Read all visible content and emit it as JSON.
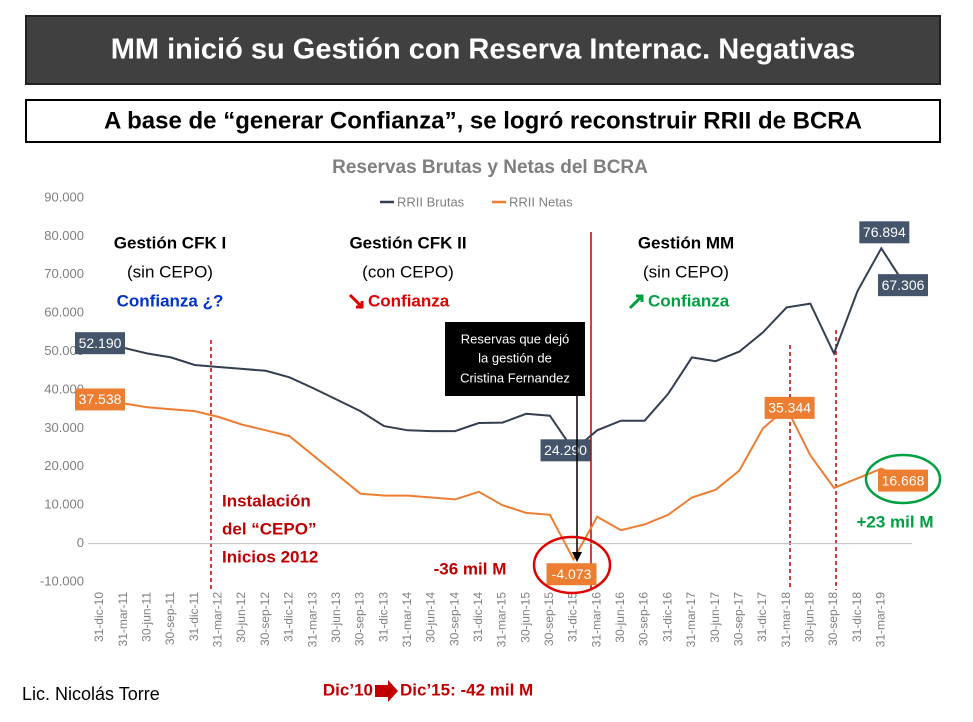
{
  "header": {
    "title": "MM inició su Gestión con Reserva Internac. Negativas",
    "subtitle": "A base de “generar Confianza”, se logró reconstruir RRII de BCRA"
  },
  "chart_data": {
    "type": "line",
    "title": "Reservas Brutas y Netas del BCRA",
    "categories": [
      "31-dic-10",
      "31-mar-11",
      "30-jun-11",
      "30-sep-11",
      "31-dic-11",
      "31-mar-12",
      "30-jun-12",
      "30-sep-12",
      "31-dic-12",
      "31-mar-13",
      "30-jun-13",
      "30-sep-13",
      "31-dic-13",
      "31-mar-14",
      "30-jun-14",
      "30-sep-14",
      "31-dic-14",
      "31-mar-15",
      "30-jun-15",
      "30-sep-15",
      "31-dic-15",
      "31-mar-16",
      "30-jun-16",
      "30-sep-16",
      "31-dic-16",
      "31-mar-17",
      "30-jun-17",
      "30-sep-17",
      "31-dic-17",
      "31-mar-18",
      "30-jun-18",
      "30-sep-18",
      "31-dic-18",
      "31-mar-19",
      null
    ],
    "series": [
      {
        "name": "RRII Brutas",
        "color": "#333f50",
        "values": [
          52190,
          51000,
          49500,
          48500,
          46500,
          46000,
          45500,
          45000,
          43300,
          40500,
          37500,
          34500,
          30600,
          29500,
          29300,
          29300,
          31400,
          31500,
          33800,
          33300,
          24290,
          29500,
          32000,
          32000,
          39000,
          48500,
          47500,
          50000,
          55000,
          61500,
          62500,
          49500,
          65800,
          76894,
          67306
        ],
        "value_labels": [
          "52.190",
          null,
          null,
          null,
          null,
          null,
          null,
          null,
          null,
          null,
          null,
          null,
          null,
          null,
          null,
          null,
          null,
          null,
          null,
          null,
          "24.290",
          null,
          null,
          null,
          null,
          null,
          null,
          null,
          null,
          null,
          null,
          null,
          null,
          "76.894",
          "67.306"
        ]
      },
      {
        "name": "RRII Netas",
        "color": "#ed7d31",
        "values": [
          37538,
          36500,
          35500,
          35000,
          34500,
          33000,
          31000,
          29500,
          28000,
          23000,
          18000,
          13000,
          12500,
          12500,
          12000,
          11500,
          13500,
          10000,
          8000,
          7500,
          -4073,
          7000,
          3500,
          5000,
          7500,
          12000,
          14000,
          19000,
          30000,
          35344,
          23000,
          14500,
          17000,
          19500,
          16668
        ],
        "value_labels": [
          "37.538",
          null,
          null,
          null,
          null,
          null,
          null,
          null,
          null,
          null,
          null,
          null,
          null,
          null,
          null,
          null,
          null,
          null,
          null,
          null,
          "-4.073",
          null,
          null,
          null,
          null,
          null,
          null,
          null,
          null,
          "35.344",
          null,
          null,
          null,
          null,
          "16.668"
        ]
      }
    ],
    "ylim": [
      -10000,
      90000
    ],
    "yticks": [
      {
        "value": -10000,
        "label": "-10.000"
      },
      0,
      {
        "value": 10000,
        "label": "10.000"
      },
      {
        "value": 20000,
        "label": "20.000"
      },
      {
        "value": 30000,
        "label": "30.000"
      },
      {
        "value": 40000,
        "label": "40.000"
      },
      {
        "value": 50000,
        "label": "50.000"
      },
      {
        "value": 60000,
        "label": "60.000"
      },
      {
        "value": 70000,
        "label": "70.000"
      },
      {
        "value": 80000,
        "label": "80.000"
      },
      {
        "value": 90000,
        "label": "90.000"
      }
    ],
    "legend": "top"
  },
  "annotations": {
    "cfk1": [
      "Gestión CFK I",
      "(sin CEPO)",
      "Confianza ¿?"
    ],
    "cfk2": [
      "Gestión CFK II",
      "(con CEPO)",
      "Confianza"
    ],
    "mm": [
      "Gestión MM",
      "(sin CEPO)",
      "Confianza"
    ],
    "box": [
      "Reservas que dejó",
      "la gestión  de",
      "Cristina Fernandez"
    ],
    "cepo": [
      "Instalación",
      "del “CEPO”",
      "Inicios 2012"
    ],
    "loss": "-36 mil M",
    "gain": "+23 mil M",
    "period_from": "Dic’10",
    "period_to": "Dic’15: -42 mil M",
    "author": "Lic. Nicolás Torre"
  }
}
